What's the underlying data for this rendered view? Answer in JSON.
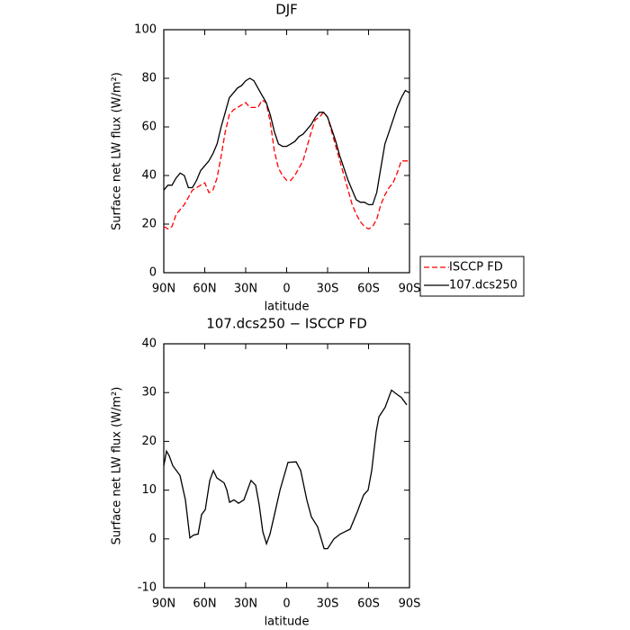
{
  "chart_data": [
    {
      "type": "line",
      "title": "DJF",
      "xlabel": "latitude",
      "ylabel": "Surface net LW flux (W/m²)",
      "xlim": [
        90,
        -90
      ],
      "ylim": [
        0,
        100
      ],
      "xticks": [
        {
          "value": 90,
          "label": "90N"
        },
        {
          "value": 60,
          "label": "60N"
        },
        {
          "value": 30,
          "label": "30N"
        },
        0,
        {
          "value": -30,
          "label": "30S"
        },
        {
          "value": -60,
          "label": "60S"
        },
        {
          "value": -90,
          "label": "90S"
        }
      ],
      "yticks": [
        0,
        20,
        40,
        60,
        80,
        100
      ],
      "legend": "right",
      "x": [
        90,
        87,
        84,
        81,
        78,
        75,
        72,
        69,
        66,
        63,
        60,
        57,
        54,
        51,
        48,
        45,
        42,
        39,
        36,
        33,
        30,
        27,
        24,
        21,
        18,
        15,
        12,
        9,
        6,
        3,
        0,
        -3,
        -6,
        -9,
        -12,
        -15,
        -18,
        -21,
        -24,
        -27,
        -30,
        -33,
        -36,
        -39,
        -42,
        -45,
        -48,
        -51,
        -54,
        -57,
        -60,
        -63,
        -66,
        -69,
        -72,
        -75,
        -78,
        -81,
        -84,
        -87,
        -90
      ],
      "series": [
        {
          "name": "ISCCP FD",
          "color": "#ff0000",
          "linestyle": "dashed",
          "values": [
            19,
            18,
            19,
            24,
            26,
            28,
            31,
            34,
            35,
            36,
            37,
            33,
            34,
            39,
            48,
            58,
            65,
            67,
            68,
            69,
            70,
            68,
            68,
            68,
            71,
            70,
            62,
            50,
            43,
            40,
            38,
            38,
            40,
            43,
            46,
            52,
            58,
            63,
            64,
            66,
            64,
            58,
            52,
            46,
            40,
            34,
            28,
            24,
            21,
            19,
            18,
            19,
            22,
            28,
            32,
            35,
            37,
            41,
            46,
            46,
            46
          ]
        },
        {
          "name": "107.dcs250",
          "color": "#000000",
          "linestyle": "solid",
          "values": [
            34,
            36,
            36,
            39,
            41,
            40,
            35,
            35,
            38,
            42,
            44,
            46,
            49,
            53,
            60,
            66,
            72,
            74,
            76,
            77,
            79,
            80,
            79,
            76,
            73,
            70,
            65,
            58,
            53,
            52,
            52,
            53,
            54,
            56,
            57,
            59,
            61,
            64,
            66,
            66,
            64,
            59,
            54,
            48,
            43,
            38,
            34,
            30,
            29,
            29,
            28,
            28,
            33,
            43,
            53,
            58,
            63,
            68,
            72,
            75,
            74
          ]
        }
      ]
    },
    {
      "type": "line",
      "title": "107.dcs250 − ISCCP FD",
      "xlabel": "latitude",
      "ylabel": "Surface net LW flux (W/m²)",
      "xlim": [
        90,
        -90
      ],
      "ylim": [
        -10,
        40
      ],
      "xticks": [
        {
          "value": 90,
          "label": "90N"
        },
        {
          "value": 60,
          "label": "60N"
        },
        {
          "value": 30,
          "label": "30N"
        },
        0,
        {
          "value": -30,
          "label": "30S"
        },
        {
          "value": -60,
          "label": "60S"
        },
        {
          "value": -90,
          "label": "90S"
        }
      ],
      "yticks": [
        -10,
        0,
        10,
        20,
        30,
        40
      ],
      "x": [
        90,
        88,
        86,
        83.4,
        78.1,
        74.2,
        70.9,
        68.2,
        64.9,
        62.3,
        59.6,
        56.3,
        53.7,
        51.1,
        45.8,
        43.8,
        41.8,
        38.6,
        35.3,
        31.3,
        26.1,
        22.7,
        20.1,
        17.5,
        14.8,
        12.2,
        8.9,
        4.9,
        -1,
        -7,
        -10.3,
        -14.8,
        -18.1,
        -22.7,
        -27.4,
        -30,
        -34.6,
        -39.2,
        -46.5,
        -51.7,
        -56.4,
        -59.7,
        -62.3,
        -65.6,
        -67.6,
        -72.2,
        -76.8,
        -81.4,
        -84,
        -88
      ],
      "series": [
        {
          "color": "#000000",
          "linestyle": "solid",
          "values": [
            15,
            18,
            17,
            15,
            13,
            8,
            0.2,
            0.8,
            1,
            5,
            6,
            12,
            14,
            12.5,
            11.5,
            10,
            7.5,
            8,
            7.3,
            8,
            12,
            11,
            7,
            1.5,
            -1,
            1,
            5,
            10,
            15.7,
            15.8,
            14,
            8,
            4.5,
            2.5,
            -2,
            -2,
            0,
            1,
            2,
            5.5,
            9,
            10,
            14,
            22,
            25,
            27,
            30.5,
            29.5,
            29,
            27.5
          ]
        }
      ]
    }
  ]
}
